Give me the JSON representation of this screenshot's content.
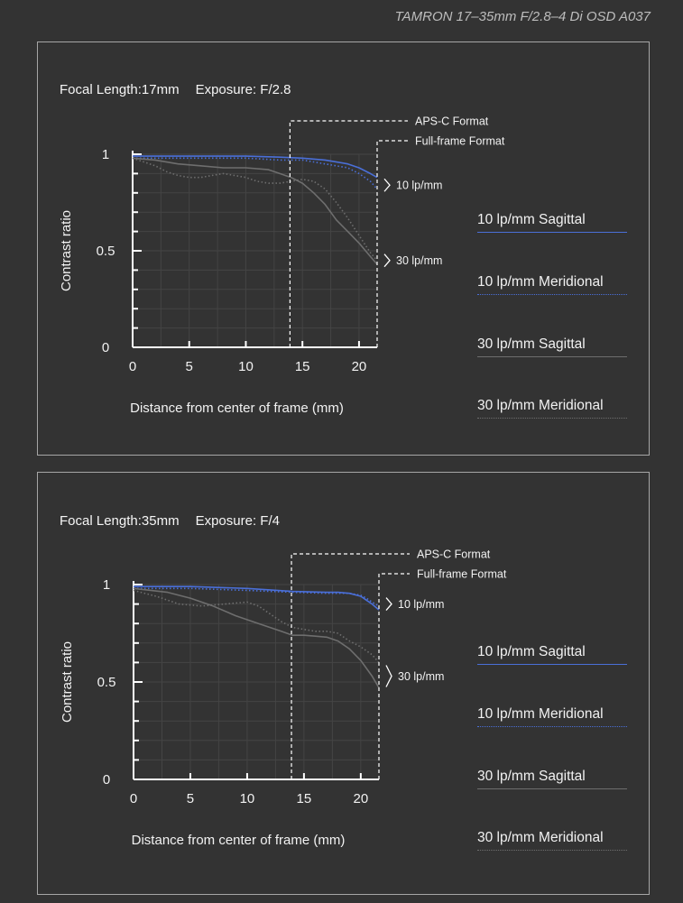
{
  "lens_title": "TAMRON 17–35mm F/2.8–4 Di OSD A037",
  "legend": [
    {
      "label": "10 lp/mm Sagittal",
      "color": "#4a6fd8",
      "style": "solid"
    },
    {
      "label": "10 lp/mm Meridional",
      "color": "#4a6fd8",
      "style": "dotted"
    },
    {
      "label": "30 lp/mm Sagittal",
      "color": "#6e6e6e",
      "style": "solid"
    },
    {
      "label": "30 lp/mm Meridional",
      "color": "#6e6e6e",
      "style": "dotted"
    }
  ],
  "chart_data": [
    {
      "type": "line",
      "focal_label": "Focal Length:17mm",
      "exposure_label": "Exposure: F/2.8",
      "xlabel": "Distance from center of frame (mm)",
      "ylabel": "Contrast ratio",
      "xlim": [
        0,
        21.6
      ],
      "ylim": [
        0,
        1
      ],
      "xticks": [
        "0",
        "5",
        "10",
        "15",
        "20"
      ],
      "yticks": [
        "0",
        "0.5",
        "1"
      ],
      "grid": true,
      "aps_c_label": "APS-C Format",
      "aps_c_x": 13.9,
      "full_frame_label": "Full-frame Format",
      "full_frame_x": 21.6,
      "freq_labels": [
        {
          "text": "10 lp/mm",
          "y": 0.84
        },
        {
          "text": "30 lp/mm",
          "y": 0.45
        }
      ],
      "series": [
        {
          "name": "10 lp/mm Sagittal",
          "x": [
            0,
            5,
            10,
            13,
            15,
            17,
            19,
            20,
            21,
            21.6
          ],
          "y": [
            0.99,
            0.99,
            0.99,
            0.985,
            0.98,
            0.97,
            0.95,
            0.93,
            0.9,
            0.88
          ]
        },
        {
          "name": "10 lp/mm Meridional",
          "x": [
            0,
            5,
            10,
            13,
            15,
            17,
            19,
            20,
            21,
            21.6
          ],
          "y": [
            0.98,
            0.98,
            0.98,
            0.97,
            0.97,
            0.95,
            0.93,
            0.9,
            0.86,
            0.82
          ]
        },
        {
          "name": "30 lp/mm Sagittal",
          "x": [
            0,
            2,
            4,
            6,
            8,
            10,
            12,
            13,
            14,
            15,
            16,
            17,
            18,
            19,
            20,
            21,
            21.6
          ],
          "y": [
            0.98,
            0.97,
            0.95,
            0.94,
            0.93,
            0.93,
            0.92,
            0.9,
            0.88,
            0.85,
            0.8,
            0.74,
            0.66,
            0.6,
            0.54,
            0.47,
            0.43
          ]
        },
        {
          "name": "30 lp/mm Meridional",
          "x": [
            0,
            2,
            3,
            4,
            5,
            6,
            7,
            8,
            9,
            10,
            11,
            12,
            13,
            14,
            15,
            16,
            17,
            18,
            19,
            20,
            21,
            21.6
          ],
          "y": [
            0.98,
            0.94,
            0.91,
            0.89,
            0.88,
            0.88,
            0.89,
            0.9,
            0.89,
            0.88,
            0.86,
            0.85,
            0.85,
            0.86,
            0.87,
            0.86,
            0.82,
            0.75,
            0.67,
            0.58,
            0.49,
            0.45
          ]
        }
      ]
    },
    {
      "type": "line",
      "focal_label": "Focal Length:35mm",
      "exposure_label": "Exposure: F/4",
      "xlabel": "Distance from center of frame (mm)",
      "ylabel": "Contrast ratio",
      "xlim": [
        0,
        21.6
      ],
      "ylim": [
        0,
        1
      ],
      "xticks": [
        "0",
        "5",
        "10",
        "15",
        "20"
      ],
      "yticks": [
        "0",
        "0.5",
        "1"
      ],
      "grid": true,
      "aps_c_label": "APS-C Format",
      "aps_c_x": 13.9,
      "full_frame_label": "Full-frame Format",
      "full_frame_x": 21.6,
      "freq_labels": [
        {
          "text": "10 lp/mm",
          "y": 0.9
        },
        {
          "text": "30 lp/mm",
          "y": 0.53
        }
      ],
      "series": [
        {
          "name": "10 lp/mm Sagittal",
          "x": [
            0,
            5,
            10,
            14,
            17,
            18,
            19,
            20,
            20.5,
            21,
            21.6
          ],
          "y": [
            0.99,
            0.99,
            0.98,
            0.965,
            0.96,
            0.96,
            0.955,
            0.94,
            0.92,
            0.9,
            0.87
          ]
        },
        {
          "name": "10 lp/mm Meridional",
          "x": [
            0,
            5,
            10,
            14,
            17,
            19,
            20,
            20.5,
            21,
            21.6
          ],
          "y": [
            0.98,
            0.98,
            0.97,
            0.96,
            0.955,
            0.955,
            0.945,
            0.93,
            0.91,
            0.89
          ]
        },
        {
          "name": "30 lp/mm Sagittal",
          "x": [
            0,
            3,
            5,
            7,
            9,
            11,
            13,
            14,
            15,
            16,
            17,
            18,
            19,
            20,
            21,
            21.6
          ],
          "y": [
            0.98,
            0.96,
            0.93,
            0.89,
            0.84,
            0.8,
            0.76,
            0.74,
            0.74,
            0.735,
            0.73,
            0.71,
            0.67,
            0.61,
            0.53,
            0.47
          ]
        },
        {
          "name": "30 lp/mm Meridional",
          "x": [
            0,
            2,
            4,
            6,
            8,
            10,
            11,
            12,
            13,
            14,
            15,
            16,
            17,
            18,
            19,
            20,
            21,
            21.6
          ],
          "y": [
            0.97,
            0.94,
            0.9,
            0.89,
            0.9,
            0.91,
            0.89,
            0.85,
            0.81,
            0.78,
            0.77,
            0.76,
            0.76,
            0.75,
            0.71,
            0.68,
            0.64,
            0.6
          ]
        }
      ]
    }
  ]
}
